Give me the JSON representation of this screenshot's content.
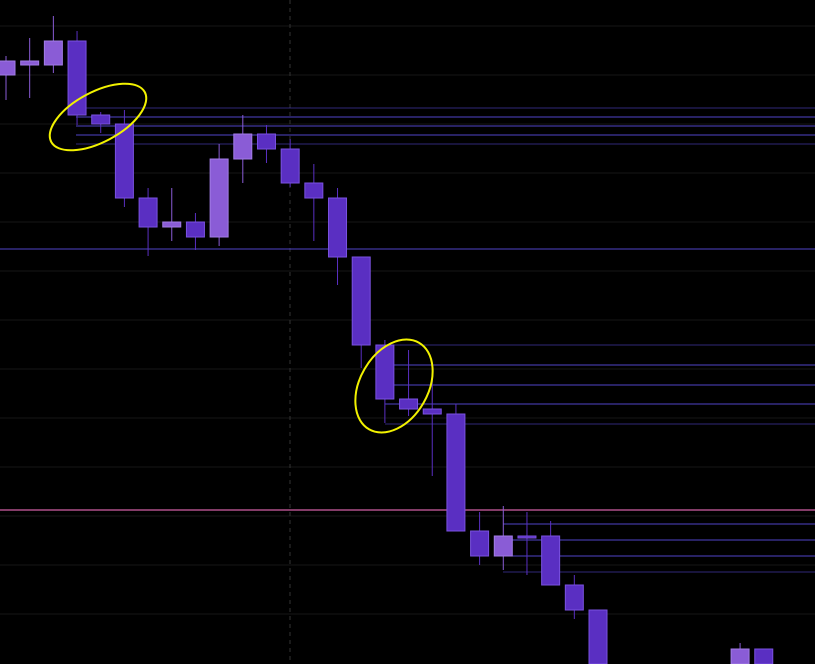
{
  "chart_data": {
    "type": "candlestick",
    "categories": [
      null,
      null,
      null,
      null,
      null,
      null,
      null,
      null,
      null,
      null,
      null,
      null,
      null,
      null,
      null,
      null,
      null,
      null,
      null,
      null,
      null,
      null,
      null,
      null,
      null,
      null,
      null,
      null,
      null,
      null,
      null,
      null,
      null
    ],
    "open": [
      589,
      599,
      599,
      623,
      549,
      540,
      466,
      437,
      442,
      427,
      505,
      530,
      515,
      481,
      466,
      407,
      319,
      265,
      255,
      250,
      133,
      108,
      128,
      128,
      79,
      54,
      null,
      null,
      null,
      null,
      null,
      0,
      15
    ],
    "high": [
      608,
      626,
      648,
      633,
      552,
      554,
      476,
      476,
      451,
      520,
      549,
      539,
      525,
      500,
      476,
      407,
      324,
      314,
      287,
      260,
      152,
      158,
      152,
      143,
      89,
      54,
      null,
      null,
      null,
      null,
      null,
      21,
      15
    ],
    "low": [
      564,
      566,
      591,
      539,
      531,
      457,
      408,
      423,
      414,
      418,
      481,
      501,
      477,
      423,
      379,
      296,
      241,
      248,
      188,
      133,
      99,
      94,
      89,
      79,
      45,
      0,
      null,
      null,
      null,
      null,
      null,
      0,
      0
    ],
    "close": [
      603,
      603,
      623,
      549,
      540,
      466,
      437,
      442,
      427,
      505,
      530,
      515,
      481,
      466,
      407,
      319,
      265,
      255,
      250,
      133,
      108,
      128,
      126,
      79,
      54,
      0,
      null,
      null,
      null,
      null,
      null,
      15,
      0
    ],
    "up_color": "#8a5cd6",
    "down_color": "#5a2fc2",
    "ylim": [
      0,
      664
    ]
  }
}
